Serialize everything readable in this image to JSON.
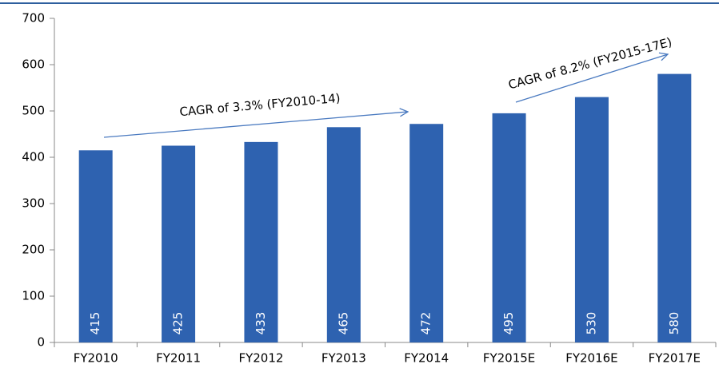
{
  "chart_data": {
    "type": "bar",
    "categories": [
      "FY2010",
      "FY2011",
      "FY2012",
      "FY2013",
      "FY2014",
      "FY2015E",
      "FY2016E",
      "FY2017E"
    ],
    "values": [
      415,
      425,
      433,
      465,
      472,
      495,
      530,
      580
    ],
    "color": "#2e62b0",
    "ylim": [
      0,
      700
    ],
    "yticks": [
      0,
      100,
      200,
      300,
      400,
      500,
      600,
      700
    ],
    "grid": false,
    "annotations": [
      "CAGR of 3.3% (FY2010-14)",
      "CAGR of 8.2% (FY2015-17E)"
    ]
  }
}
